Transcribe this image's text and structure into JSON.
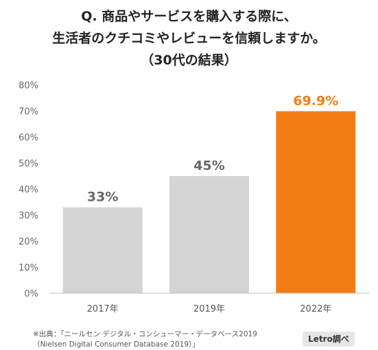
{
  "titles": {
    "line1": "Q. 商品やサービスを購入する際に、",
    "line2": "生活者のクチコミやレビューを信頼しますか。",
    "line3": "（30代の結果）"
  },
  "chart_data": {
    "type": "bar",
    "categories": [
      "2017年",
      "2019年",
      "2022年"
    ],
    "values": [
      33,
      45,
      69.9
    ],
    "value_labels": [
      "33%",
      "45%",
      "69.9%"
    ],
    "y_ticks": [
      "0%",
      "10%",
      "20%",
      "30%",
      "40%",
      "50%",
      "60%",
      "70%",
      "80%"
    ],
    "ylim": [
      0,
      80
    ],
    "grid": false,
    "colors": [
      "#d4d4d4",
      "#d4d4d4",
      "#f47c14"
    ],
    "label_colors": [
      "#666666",
      "#666666",
      "#f47c14"
    ]
  },
  "footer": {
    "source_line1": "※出典：「ニールセン デジタル・コンシューマー・データベース2019",
    "source_line2": "（Nielsen Digital Consumer Database 2019）」",
    "badge": "Letro調べ"
  }
}
